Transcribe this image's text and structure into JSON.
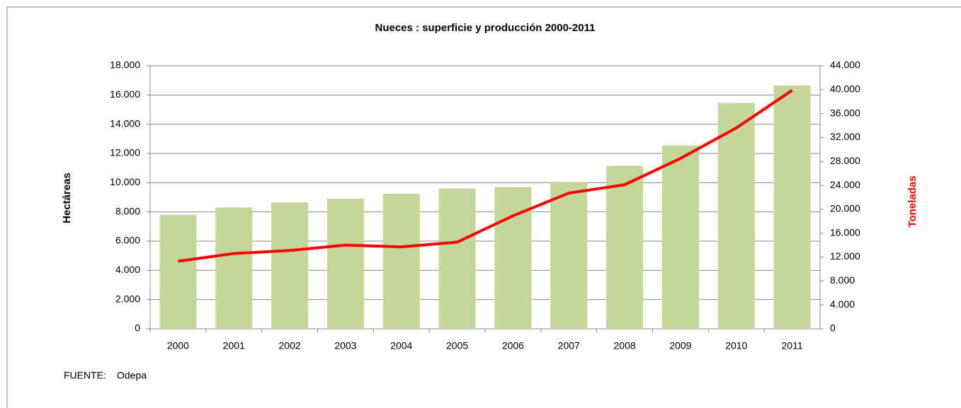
{
  "chart_data": {
    "type": "bar-line",
    "title": "Nueces : superficie y producción 2000-2011",
    "ylabel": "Hectáreas",
    "y2label": "Toneladas",
    "source_label": "FUENTE:",
    "source": "Odepa",
    "categories": [
      "2000",
      "2001",
      "2002",
      "2003",
      "2004",
      "2005",
      "2006",
      "2007",
      "2008",
      "2009",
      "2010",
      "2011"
    ],
    "series": [
      {
        "type": "bar",
        "color": "#c4d79b",
        "values": [
          7800,
          8300,
          8650,
          8900,
          9250,
          9600,
          9700,
          10050,
          11150,
          12550,
          15450,
          16650
        ]
      },
      {
        "type": "line",
        "axis": "y2",
        "color": "#ff0000",
        "values": [
          11300,
          12600,
          13100,
          14000,
          13700,
          14500,
          18900,
          22700,
          24100,
          28500,
          33600,
          39900
        ]
      }
    ],
    "ylim": [
      0,
      18000
    ],
    "yticks": [
      0,
      {
        "value": 2000,
        "label": "2.000"
      },
      {
        "value": 4000,
        "label": "4.000"
      },
      {
        "value": 6000,
        "label": "6.000"
      },
      {
        "value": 8000,
        "label": "8.000"
      },
      {
        "value": 10000,
        "label": "10.000"
      },
      {
        "value": 12000,
        "label": "12.000"
      },
      {
        "value": 14000,
        "label": "14.000"
      },
      {
        "value": 16000,
        "label": "16.000"
      },
      {
        "value": 18000,
        "label": "18.000"
      }
    ],
    "y2lim": [
      0,
      44000
    ],
    "y2ticks": [
      0,
      {
        "value": 4000,
        "label": "4.000"
      },
      {
        "value": 8000,
        "label": "8.000"
      },
      {
        "value": 12000,
        "label": "12.000"
      },
      {
        "value": 16000,
        "label": "16.000"
      },
      {
        "value": 20000,
        "label": "20.000"
      },
      {
        "value": 24000,
        "label": "24.000"
      },
      {
        "value": 28000,
        "label": "28.000"
      },
      {
        "value": 32000,
        "label": "32.000"
      },
      {
        "value": 36000,
        "label": "36.000"
      },
      {
        "value": 40000,
        "label": "40.000"
      },
      {
        "value": 44000,
        "label": "44.000"
      }
    ],
    "grid": true,
    "y2label_color": "#ff0000"
  }
}
